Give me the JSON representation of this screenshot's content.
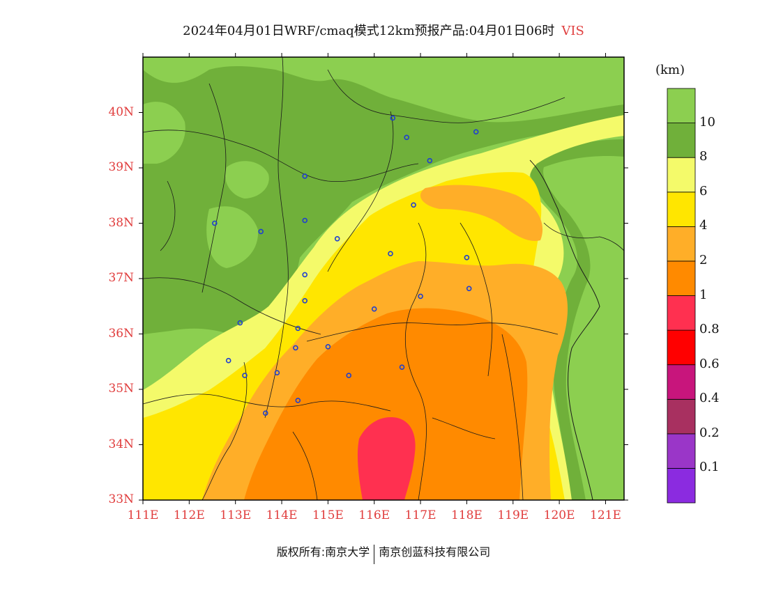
{
  "header": {
    "title": "2024年04月01日WRF/cmaq模式12km预报产品:04月01日06时",
    "variable": "VIS"
  },
  "map": {
    "lon_range": [
      111,
      121.4
    ],
    "lat_range": [
      33,
      41
    ],
    "lat_labels": [
      "40N",
      "39N",
      "38N",
      "37N",
      "36N",
      "35N",
      "34N",
      "33N"
    ],
    "lat_values": [
      40,
      39,
      38,
      37,
      36,
      35,
      34,
      33
    ],
    "lon_labels": [
      "111E",
      "112E",
      "113E",
      "114E",
      "115E",
      "116E",
      "117E",
      "118E",
      "119E",
      "120E",
      "121E"
    ],
    "lon_values": [
      111,
      112,
      113,
      114,
      115,
      116,
      117,
      118,
      119,
      120,
      121
    ],
    "cities": [
      {
        "lon": 116.4,
        "lat": 39.9
      },
      {
        "lon": 116.7,
        "lat": 39.55
      },
      {
        "lon": 117.2,
        "lat": 39.13
      },
      {
        "lon": 118.2,
        "lat": 39.65
      },
      {
        "lon": 114.5,
        "lat": 38.85
      },
      {
        "lon": 112.55,
        "lat": 38.0
      },
      {
        "lon": 113.55,
        "lat": 37.85
      },
      {
        "lon": 114.5,
        "lat": 38.05
      },
      {
        "lon": 116.85,
        "lat": 38.33
      },
      {
        "lon": 115.2,
        "lat": 37.72
      },
      {
        "lon": 116.35,
        "lat": 37.45
      },
      {
        "lon": 118.0,
        "lat": 37.38
      },
      {
        "lon": 118.05,
        "lat": 36.82
      },
      {
        "lon": 117.0,
        "lat": 36.68
      },
      {
        "lon": 114.5,
        "lat": 37.07
      },
      {
        "lon": 114.5,
        "lat": 36.6
      },
      {
        "lon": 116.0,
        "lat": 36.45
      },
      {
        "lon": 113.1,
        "lat": 36.2
      },
      {
        "lon": 114.35,
        "lat": 36.1
      },
      {
        "lon": 114.3,
        "lat": 35.75
      },
      {
        "lon": 115.0,
        "lat": 35.77
      },
      {
        "lon": 112.85,
        "lat": 35.52
      },
      {
        "lon": 113.2,
        "lat": 35.25
      },
      {
        "lon": 113.9,
        "lat": 35.3
      },
      {
        "lon": 115.45,
        "lat": 35.25
      },
      {
        "lon": 116.6,
        "lat": 35.4
      },
      {
        "lon": 114.35,
        "lat": 34.8
      },
      {
        "lon": 113.65,
        "lat": 34.57
      }
    ]
  },
  "colorbar": {
    "unit": "(km)",
    "colors": [
      "#8b2be0",
      "#9a36c8",
      "#a83060",
      "#c8157c",
      "#ff0000",
      "#ff3050",
      "#ff8a00",
      "#ffae28",
      "#ffe600",
      "#f4fa6a",
      "#70b03a",
      "#8ccf50"
    ],
    "labels": [
      "0.1",
      "0.2",
      "0.4",
      "0.6",
      "0.8",
      "1",
      "2",
      "4",
      "6",
      "8",
      "10"
    ]
  },
  "footer": {
    "left": "版权所有:南京大学",
    "right": "南京创蓝科技有限公司"
  }
}
